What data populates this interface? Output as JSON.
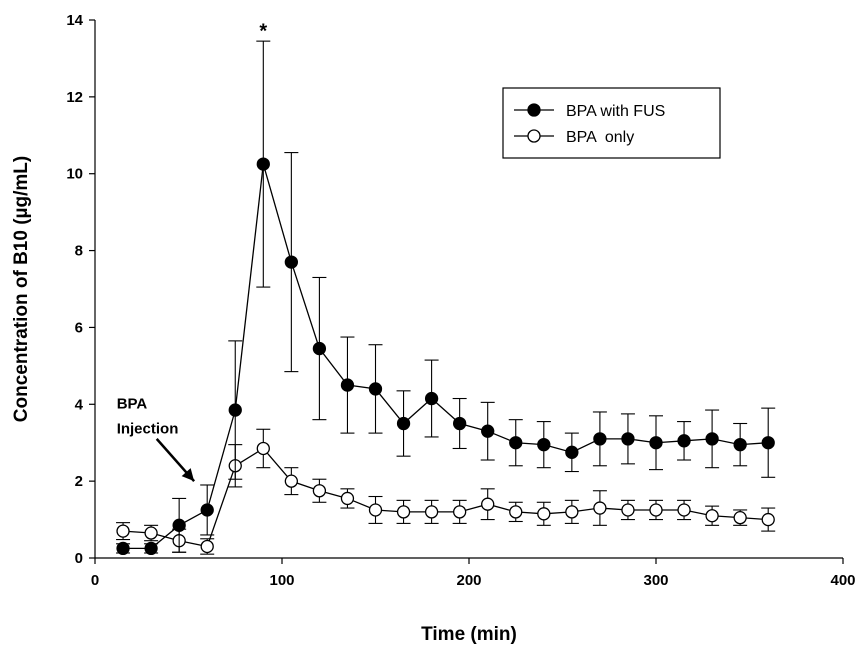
{
  "chart_data": {
    "type": "line",
    "xlabel": "Time (min)",
    "ylabel": "Concentration of B10 (µg/mL)",
    "xlim": [
      0,
      400
    ],
    "ylim": [
      0,
      14
    ],
    "xticks": [
      0,
      100,
      200,
      300,
      400
    ],
    "yticks": [
      0,
      2,
      4,
      6,
      8,
      10,
      12,
      14
    ],
    "grid": false,
    "legend_position": "top-right",
    "x": [
      15,
      30,
      45,
      60,
      75,
      90,
      105,
      120,
      135,
      150,
      165,
      180,
      195,
      210,
      225,
      240,
      255,
      270,
      285,
      300,
      315,
      330,
      345,
      360
    ],
    "series": [
      {
        "name": "BPA with FUS",
        "marker": "filled-circle",
        "values": [
          0.25,
          0.25,
          0.85,
          1.25,
          3.85,
          10.25,
          7.7,
          5.45,
          4.5,
          4.4,
          3.5,
          4.15,
          3.5,
          3.3,
          3.0,
          2.95,
          2.75,
          3.1,
          3.1,
          3.0,
          3.05,
          3.1,
          2.95,
          3.0
        ],
        "errors": [
          0.12,
          0.12,
          0.7,
          0.65,
          1.8,
          3.2,
          2.85,
          1.85,
          1.25,
          1.15,
          0.85,
          1.0,
          0.65,
          0.75,
          0.6,
          0.6,
          0.5,
          0.7,
          0.65,
          0.7,
          0.5,
          0.75,
          0.55,
          0.9
        ]
      },
      {
        "name": "BPA  only",
        "marker": "open-circle",
        "values": [
          0.7,
          0.65,
          0.45,
          0.3,
          2.4,
          2.85,
          2.0,
          1.75,
          1.55,
          1.25,
          1.2,
          1.2,
          1.2,
          1.4,
          1.2,
          1.15,
          1.2,
          1.3,
          1.25,
          1.25,
          1.25,
          1.1,
          1.05,
          1.0
        ],
        "errors": [
          0.22,
          0.2,
          0.3,
          0.2,
          0.55,
          0.5,
          0.35,
          0.3,
          0.25,
          0.35,
          0.3,
          0.3,
          0.3,
          0.4,
          0.25,
          0.3,
          0.3,
          0.45,
          0.25,
          0.25,
          0.25,
          0.25,
          0.2,
          0.3
        ]
      }
    ],
    "annotations": [
      {
        "text": "*",
        "x": 90,
        "y": 13.7
      },
      {
        "text": "BPA",
        "x": 10,
        "y": 4.05
      },
      {
        "text": "Injection",
        "x": 10,
        "y": 3.4
      }
    ],
    "arrow": {
      "from": [
        33,
        3.1
      ],
      "to": [
        53,
        2.0
      ]
    }
  }
}
